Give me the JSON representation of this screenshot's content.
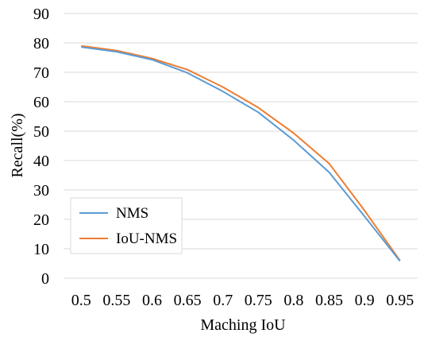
{
  "chart_data": {
    "type": "line",
    "xlabel": "Maching IoU",
    "ylabel": "Recall(%)",
    "x": [
      0.5,
      0.55,
      0.6,
      0.65,
      0.7,
      0.75,
      0.8,
      0.85,
      0.9,
      0.95
    ],
    "xticks": [
      "0.5",
      "0.55",
      "0.6",
      "0.65",
      "0.7",
      "0.75",
      "0.8",
      "0.85",
      "0.9",
      "0.95"
    ],
    "ylim": [
      0,
      90
    ],
    "yticks": [
      "0",
      "10",
      "20",
      "30",
      "40",
      "50",
      "60",
      "70",
      "80",
      "90"
    ],
    "grid": "horizontal",
    "legend_position": "bottom-left",
    "series": [
      {
        "name": "NMS",
        "color": "#5b9bd5",
        "values": [
          78.6,
          77.0,
          74.3,
          69.8,
          63.5,
          56.4,
          46.9,
          36.0,
          21.0,
          5.8
        ]
      },
      {
        "name": "IoU-NMS",
        "color": "#ed7d31",
        "values": [
          79.0,
          77.4,
          74.7,
          70.9,
          65.0,
          58.0,
          49.3,
          39.0,
          23.0,
          6.0
        ]
      }
    ]
  }
}
